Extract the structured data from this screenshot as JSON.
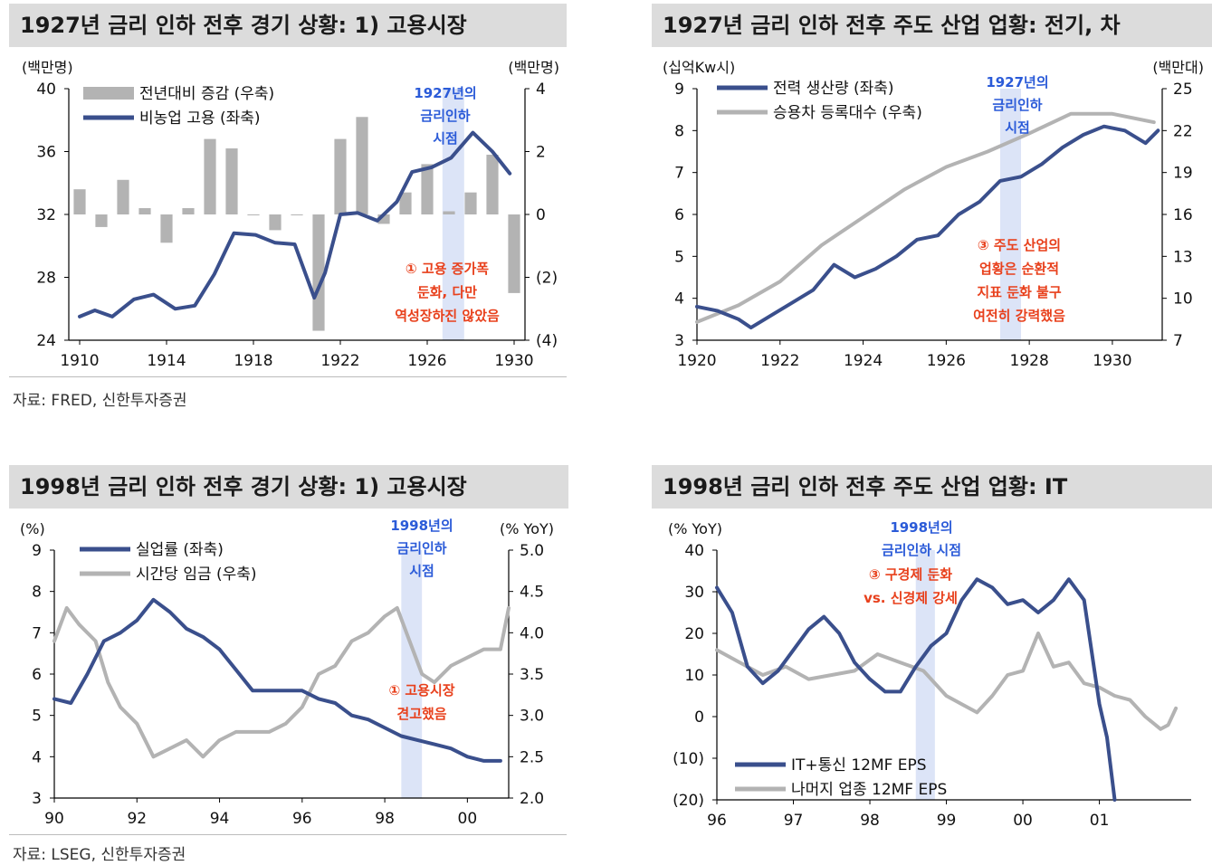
{
  "panels": {
    "p1": {
      "title": "1927년 금리 인하 전후 경기 상황: 1) 고용시장",
      "source": "자료: FRED, 신한투자증권",
      "chart_data": {
        "type": "bar+line",
        "unit_left": "(백만명)",
        "unit_right": "(백만명)",
        "x_range": [
          1909.5,
          1930.5
        ],
        "x_ticks": [
          "1910",
          "1914",
          "1918",
          "1922",
          "1926",
          "1930"
        ],
        "y_left": {
          "min": 24,
          "max": 40,
          "ticks": [
            "40",
            "36",
            "32",
            "28",
            "24"
          ]
        },
        "y_right": {
          "min": -4,
          "max": 4,
          "ticks": [
            "4",
            "2",
            "0",
            "(2)",
            "(4)"
          ]
        },
        "legend": [
          {
            "name": "전년대비 증감 (우축)",
            "color": "#b3b3b3"
          },
          {
            "name": "비농업 고용 (좌축)",
            "color": "#3a4f8c"
          }
        ],
        "bars_x": [
          1910,
          1911,
          1912,
          1913,
          1914,
          1915,
          1916,
          1917,
          1918,
          1919,
          1920,
          1921,
          1922,
          1923,
          1924,
          1925,
          1926,
          1927,
          1928,
          1929,
          1930
        ],
        "bars": [
          0.8,
          -0.4,
          1.1,
          0.2,
          -0.9,
          0.2,
          2.4,
          2.1,
          0.0,
          -0.5,
          0.0,
          -3.7,
          2.4,
          3.1,
          -0.3,
          0.7,
          1.6,
          0.1,
          0.7,
          1.9,
          -2.5
        ],
        "line_x": [
          1910,
          1910.7,
          1911.5,
          1912.5,
          1913.4,
          1914.4,
          1915.3,
          1916.2,
          1917.1,
          1918.1,
          1919.0,
          1919.9,
          1920.8,
          1921.3,
          1922.0,
          1922.8,
          1923.7,
          1924.6,
          1925.3,
          1926.2,
          1927.1,
          1928.1,
          1929.0,
          1929.8
        ],
        "line": [
          25.5,
          25.9,
          25.5,
          26.6,
          26.9,
          26.0,
          26.2,
          28.2,
          30.8,
          30.7,
          30.2,
          30.1,
          26.7,
          28.3,
          32.0,
          32.1,
          31.6,
          32.8,
          34.7,
          35.0,
          35.6,
          37.2,
          36.0,
          34.6
        ],
        "band_x": [
          1926.7,
          1927.7
        ],
        "band_label": [
          "1927년의",
          "금리인하",
          "시점"
        ],
        "note": [
          "① 고용 증가폭",
          "둔화, 다만",
          "역성장하진 않았음"
        ]
      }
    },
    "p2": {
      "title": "1927년 금리 인하 전후 주도 산업 업황: 전기, 차",
      "chart_data": {
        "type": "line",
        "unit_left": "(십억Kw시)",
        "unit_right": "(백만대)",
        "x_range": [
          1920,
          1931.2
        ],
        "x_ticks": [
          "1920",
          "1922",
          "1924",
          "1926",
          "1928",
          "1930"
        ],
        "y_left": {
          "min": 3,
          "max": 9,
          "ticks": [
            "9",
            "8",
            "7",
            "6",
            "5",
            "4",
            "3"
          ]
        },
        "y_right": {
          "min": 7,
          "max": 25,
          "ticks": [
            "25",
            "22",
            "19",
            "16",
            "13",
            "10",
            "7"
          ]
        },
        "legend": [
          {
            "name": "전력 생산량 (좌축)",
            "color": "#3a4f8c"
          },
          {
            "name": "승용차 등록대수 (우축)",
            "color": "#b3b3b3"
          }
        ],
        "line1_x": [
          1920,
          1920.5,
          1921,
          1921.3,
          1921.8,
          1922.3,
          1922.8,
          1923.3,
          1923.8,
          1924.3,
          1924.8,
          1925.3,
          1925.8,
          1926.3,
          1926.8,
          1927.3,
          1927.8,
          1928.3,
          1928.8,
          1929.3,
          1929.8,
          1930.3,
          1930.8,
          1931.1
        ],
        "line1": [
          3.8,
          3.7,
          3.5,
          3.3,
          3.6,
          3.9,
          4.2,
          4.8,
          4.5,
          4.7,
          5.0,
          5.4,
          5.5,
          6.0,
          6.3,
          6.8,
          6.9,
          7.2,
          7.6,
          7.9,
          8.1,
          8.0,
          7.7,
          8.0
        ],
        "line2_x": [
          1920,
          1921,
          1922,
          1923,
          1924,
          1925,
          1926,
          1927,
          1928,
          1929,
          1930,
          1931
        ],
        "line2": [
          8.3,
          9.5,
          11.2,
          13.8,
          15.8,
          17.8,
          19.4,
          20.5,
          21.8,
          23.2,
          23.2,
          22.6
        ],
        "band_x": [
          1927.3,
          1927.8
        ],
        "band_label": [
          "1927년의",
          "금리인하",
          "시점"
        ],
        "note": [
          "③ 주도 산업의",
          "업황은 순환적",
          "지표 둔화 불구",
          "여전히 강력했음"
        ]
      }
    },
    "p3": {
      "title": "1998년 금리 인하 전후 경기 상황: 1) 고용시장",
      "source": "자료: LSEG, 신한투자증권",
      "chart_data": {
        "type": "line",
        "unit_left": "(%)",
        "unit_right": "(% YoY)",
        "x_range": [
          1990,
          2001
        ],
        "x_ticks": [
          "90",
          "92",
          "94",
          "96",
          "98",
          "00"
        ],
        "y_left": {
          "min": 3,
          "max": 9,
          "ticks": [
            "9",
            "8",
            "7",
            "6",
            "5",
            "4",
            "3"
          ]
        },
        "y_right": {
          "min": 2.0,
          "max": 5.0,
          "ticks": [
            "5.0",
            "4.5",
            "4.0",
            "3.5",
            "3.0",
            "2.5",
            "2.0"
          ]
        },
        "legend": [
          {
            "name": "실업률 (좌축)",
            "color": "#3a4f8c"
          },
          {
            "name": "시간당 임금 (우축)",
            "color": "#b3b3b3"
          }
        ],
        "line1_x": [
          1990,
          1990.4,
          1990.8,
          1991.2,
          1991.6,
          1992.0,
          1992.4,
          1992.8,
          1993.2,
          1993.6,
          1994.0,
          1994.4,
          1994.8,
          1995.2,
          1995.6,
          1996.0,
          1996.4,
          1996.8,
          1997.2,
          1997.6,
          1998.0,
          1998.4,
          1998.8,
          1999.2,
          1999.6,
          2000.0,
          2000.4,
          2000.8
        ],
        "line1": [
          5.4,
          5.3,
          6.0,
          6.8,
          7.0,
          7.3,
          7.8,
          7.5,
          7.1,
          6.9,
          6.6,
          6.1,
          5.6,
          5.6,
          5.6,
          5.6,
          5.4,
          5.3,
          5.0,
          4.9,
          4.7,
          4.5,
          4.4,
          4.3,
          4.2,
          4.0,
          3.9,
          3.9
        ],
        "line2_x": [
          1990,
          1990.3,
          1990.6,
          1991.0,
          1991.3,
          1991.6,
          1992.0,
          1992.4,
          1992.8,
          1993.2,
          1993.6,
          1994.0,
          1994.4,
          1994.8,
          1995.2,
          1995.6,
          1996.0,
          1996.4,
          1996.8,
          1997.2,
          1997.6,
          1998.0,
          1998.3,
          1998.6,
          1998.9,
          1999.2,
          1999.6,
          2000.0,
          2000.4,
          2000.8,
          2001.0
        ],
        "line2": [
          3.9,
          4.3,
          4.1,
          3.9,
          3.4,
          3.1,
          2.9,
          2.5,
          2.6,
          2.7,
          2.5,
          2.7,
          2.8,
          2.8,
          2.8,
          2.9,
          3.1,
          3.5,
          3.6,
          3.9,
          4.0,
          4.2,
          4.3,
          3.9,
          3.5,
          3.4,
          3.6,
          3.7,
          3.8,
          3.8,
          4.3
        ],
        "band_x": [
          1998.4,
          1998.9
        ],
        "band_label": [
          "1998년의",
          "금리인하",
          "시점"
        ],
        "note": [
          "① 고용시장",
          "견고했음"
        ]
      }
    },
    "p4": {
      "title": "1998년 금리 인하 전후 주도 산업 업황: IT",
      "chart_data": {
        "type": "line",
        "unit_left": "(% YoY)",
        "x_range": [
          1996,
          2002.2
        ],
        "x_ticks": [
          "96",
          "97",
          "98",
          "99",
          "00",
          "01"
        ],
        "y_left": {
          "min": -20,
          "max": 40,
          "ticks": [
            "40",
            "30",
            "20",
            "10",
            "0",
            "(10)",
            "(20)"
          ]
        },
        "legend": [
          {
            "name": "IT+통신 12MF EPS",
            "color": "#3a4f8c"
          },
          {
            "name": "나머지 업종 12MF EPS",
            "color": "#b3b3b3"
          }
        ],
        "line1_x": [
          1996,
          1996.2,
          1996.4,
          1996.6,
          1996.8,
          1997.0,
          1997.2,
          1997.4,
          1997.6,
          1997.8,
          1998.0,
          1998.2,
          1998.4,
          1998.6,
          1998.8,
          1999.0,
          1999.2,
          1999.4,
          1999.6,
          1999.8,
          2000.0,
          2000.2,
          2000.4,
          2000.6,
          2000.8,
          2001.0,
          2001.1,
          2001.2
        ],
        "line1": [
          31,
          25,
          12,
          8,
          11,
          16,
          21,
          24,
          20,
          13,
          9,
          6,
          6,
          12,
          17,
          20,
          28,
          33,
          31,
          27,
          28,
          25,
          28,
          33,
          28,
          3,
          -5,
          -20
        ],
        "line2_x": [
          1996,
          1996.3,
          1996.6,
          1996.9,
          1997.2,
          1997.5,
          1997.8,
          1998.1,
          1998.4,
          1998.7,
          1999.0,
          1999.2,
          1999.4,
          1999.6,
          1999.8,
          2000.0,
          2000.2,
          2000.4,
          2000.6,
          2000.8,
          2001.0,
          2001.2,
          2001.4,
          2001.6,
          2001.8,
          2001.9,
          2002.0
        ],
        "line2": [
          16,
          13,
          10,
          12,
          9,
          10,
          11,
          15,
          13,
          11,
          5,
          3,
          1,
          5,
          10,
          11,
          20,
          12,
          13,
          8,
          7,
          5,
          4,
          0,
          -3,
          -2,
          2
        ],
        "band_x": [
          1998.6,
          1998.85
        ],
        "band_label": [
          "1998년의",
          "금리인하 시점"
        ],
        "note": [
          "③ 구경제 둔화",
          "vs. 신경제 강세"
        ]
      }
    }
  },
  "colors": {
    "series_primary": "#3a4f8c",
    "series_secondary": "#b3b3b3",
    "band": "#dce4f7",
    "band_text": "#2b5bd8",
    "note_text": "#e8401c"
  }
}
